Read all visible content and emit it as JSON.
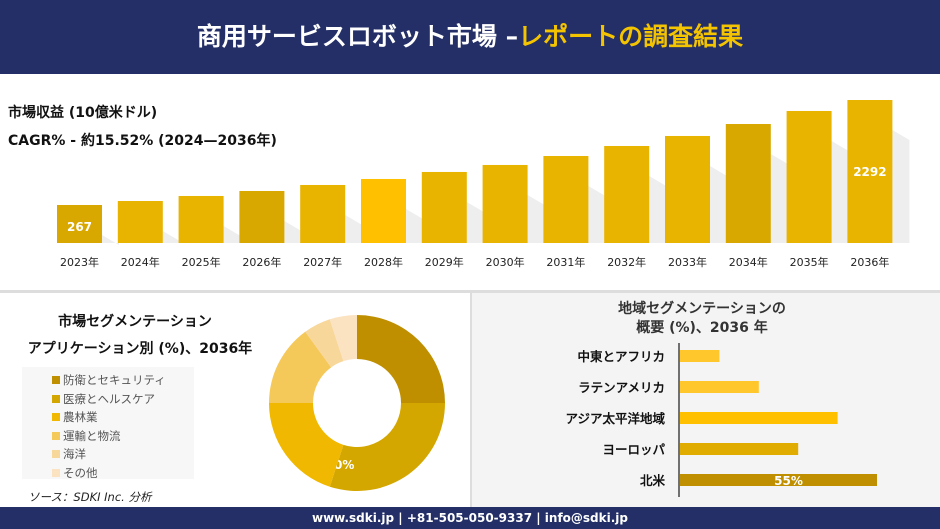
{
  "header": {
    "title_main": "商用サービスロボット市場 –",
    "title_accent": "レポートの調査結果"
  },
  "footer": {
    "text": "www.sdki.jp | +81-505-050-9337 | info@sdki.jp"
  },
  "source": "ソース：SDKI Inc. 分析",
  "chart_data": [
    {
      "type": "bar",
      "title": "市場収益 (10億米ドル)",
      "subtitle": "CAGR% - 約15.52% (2024—2036年)",
      "categories": [
        "2023年",
        "2024年",
        "2025年",
        "2026年",
        "2027年",
        "2028年",
        "2029年",
        "2030年",
        "2031年",
        "2032年",
        "2033年",
        "2034年",
        "2035年",
        "2036年"
      ],
      "values": [
        267,
        344,
        441,
        537,
        653,
        769,
        904,
        1039,
        1212,
        1405,
        1598,
        1829,
        2080,
        2292
      ],
      "data_labels": {
        "0": "267",
        "13": "2292"
      },
      "colors": [
        "#d9a800",
        "#e8b400",
        "#e8b400",
        "#d9a800",
        "#e8b400",
        "#ffc000",
        "#e8b400",
        "#e8b400",
        "#e8b400",
        "#e8b400",
        "#e8b400",
        "#d9a800",
        "#e8b400",
        "#e8b400"
      ]
    },
    {
      "type": "pie",
      "title_line1": "市場セグメンテーション",
      "title_line2": "アプリケーション別 (%)、2036年",
      "labels": [
        "防衛とセキュリティ",
        "医療とヘルスケア",
        "農林業",
        "運輸と物流",
        "海洋",
        "その他"
      ],
      "values": [
        25,
        30,
        20,
        15,
        5,
        5
      ],
      "data_labels": {
        "1": "30%"
      },
      "colors": [
        "#bf8f00",
        "#d4a600",
        "#f0b800",
        "#f5c85a",
        "#f8d79a",
        "#fbe3c2"
      ]
    },
    {
      "type": "bar",
      "orientation": "horizontal",
      "title_line1": "地域セグメンテーションの",
      "title_line2": "概要 (%)、2036 年",
      "categories": [
        "中東とアフリカ",
        "ラテンアメリカ",
        "アジア太平洋地域",
        "ヨーロッパ",
        "北米"
      ],
      "values": [
        11,
        22,
        44,
        33,
        55
      ],
      "data_labels": {
        "4": "55%"
      },
      "colors": [
        "#ffc72c",
        "#ffc72c",
        "#ffc000",
        "#e0ac00",
        "#bf8f00"
      ]
    }
  ]
}
